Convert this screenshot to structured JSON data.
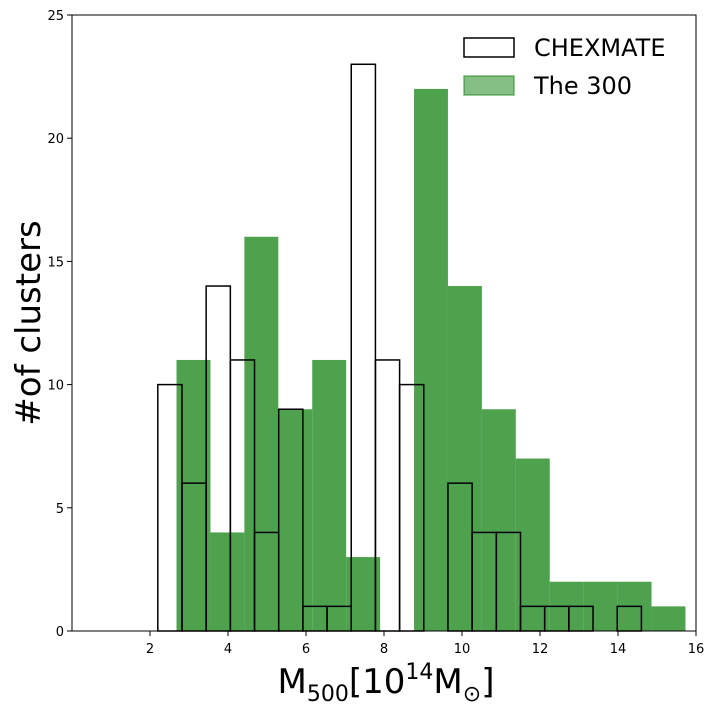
{
  "chart_data": {
    "type": "bar",
    "title": "",
    "xlabel": {
      "base": "M",
      "sub": "500",
      "mid": "[10",
      "sup": "14",
      "unit": "M",
      "unit_sub": "⊙",
      "close": "]"
    },
    "ylabel": "#of clusters",
    "xlim": [
      0,
      16
    ],
    "ylim": [
      0,
      25
    ],
    "xticks": [
      2,
      4,
      6,
      8,
      10,
      12,
      14,
      16
    ],
    "yticks": [
      0,
      5,
      10,
      15,
      20,
      25
    ],
    "grid": false,
    "legend_position": "top-right",
    "series": [
      {
        "name": "The 300",
        "style": "filled",
        "color": "#228B22",
        "alpha": 0.8,
        "bin_width": 0.87,
        "bin_left": [
          2.68,
          3.55,
          4.42,
          5.29,
          6.16,
          7.03,
          7.9,
          8.77,
          9.64,
          10.51,
          11.38,
          12.25,
          13.12,
          13.99,
          14.86
        ],
        "values": [
          11,
          4,
          16,
          9,
          11,
          3,
          0,
          22,
          14,
          9,
          7,
          2,
          2,
          2,
          1
        ]
      },
      {
        "name": "CHEXMATE",
        "style": "outline",
        "color": "#000000",
        "bin_width": 0.62,
        "bin_left": [
          2.2,
          2.82,
          3.44,
          4.06,
          4.68,
          5.3,
          5.92,
          6.54,
          7.16,
          7.78,
          8.4,
          9.02,
          9.64,
          10.26,
          10.88,
          11.5,
          12.12,
          12.74,
          13.36,
          13.98
        ],
        "values": [
          10,
          6,
          14,
          11,
          4,
          9,
          1,
          1,
          23,
          11,
          10,
          0,
          6,
          4,
          4,
          1,
          1,
          1,
          0,
          1
        ]
      }
    ]
  }
}
